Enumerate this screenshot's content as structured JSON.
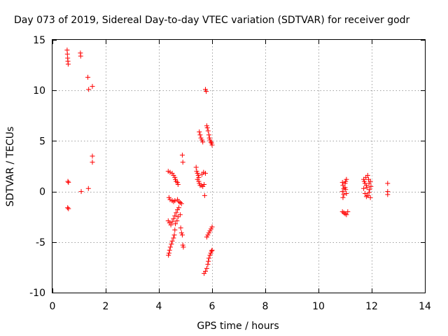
{
  "chart_data": {
    "type": "scatter",
    "title": "Day 073 of 2019, Sidereal Day-to-day VTEC variation (SDTVAR) for receiver godr",
    "xlabel": "GPS time / hours",
    "ylabel": "SDTVAR / TECUs",
    "xlim": [
      0,
      14
    ],
    "ylim": [
      -10,
      15
    ],
    "xticks": [
      0,
      2,
      4,
      6,
      8,
      10,
      12,
      14
    ],
    "yticks": [
      -10,
      -5,
      0,
      5,
      10,
      15
    ],
    "grid": true,
    "marker": "+",
    "color": "#ff0000",
    "series": [
      {
        "name": "SDTVAR",
        "points": [
          [
            0.55,
            14.0
          ],
          [
            0.56,
            13.6
          ],
          [
            0.57,
            13.2
          ],
          [
            0.58,
            12.9
          ],
          [
            0.59,
            12.6
          ],
          [
            0.58,
            1.0
          ],
          [
            0.6,
            0.9
          ],
          [
            0.57,
            -1.6
          ],
          [
            0.6,
            -1.7
          ],
          [
            1.05,
            13.7
          ],
          [
            1.06,
            13.4
          ],
          [
            1.08,
            0.0
          ],
          [
            1.33,
            11.3
          ],
          [
            1.36,
            10.1
          ],
          [
            1.5,
            10.4
          ],
          [
            1.5,
            3.5
          ],
          [
            1.5,
            2.9
          ],
          [
            1.35,
            0.3
          ],
          [
            4.35,
            2.0
          ],
          [
            4.42,
            1.9
          ],
          [
            4.5,
            1.8
          ],
          [
            4.55,
            1.6
          ],
          [
            4.6,
            1.4
          ],
          [
            4.62,
            1.2
          ],
          [
            4.65,
            1.0
          ],
          [
            4.7,
            0.9
          ],
          [
            4.72,
            0.7
          ],
          [
            4.38,
            -0.6
          ],
          [
            4.42,
            -0.8
          ],
          [
            4.5,
            -0.9
          ],
          [
            4.55,
            -1.0
          ],
          [
            4.6,
            -0.9
          ],
          [
            4.7,
            -0.8
          ],
          [
            4.75,
            -1.0
          ],
          [
            4.8,
            -1.1
          ],
          [
            4.85,
            -1.2
          ],
          [
            4.35,
            -2.9
          ],
          [
            4.4,
            -3.1
          ],
          [
            4.45,
            -3.3
          ],
          [
            4.5,
            -3.0
          ],
          [
            4.55,
            -2.7
          ],
          [
            4.6,
            -2.4
          ],
          [
            4.65,
            -2.1
          ],
          [
            4.7,
            -1.8
          ],
          [
            4.75,
            -1.6
          ],
          [
            4.62,
            -3.2
          ],
          [
            4.68,
            -2.9
          ],
          [
            4.72,
            -2.5
          ],
          [
            4.6,
            -3.8
          ],
          [
            4.58,
            -4.3
          ],
          [
            4.55,
            -4.6
          ],
          [
            4.5,
            -4.9
          ],
          [
            4.47,
            -5.2
          ],
          [
            4.43,
            -5.5
          ],
          [
            4.4,
            -5.8
          ],
          [
            4.38,
            -6.1
          ],
          [
            4.36,
            -6.3
          ],
          [
            4.8,
            -2.3
          ],
          [
            4.82,
            -3.6
          ],
          [
            4.85,
            -4.1
          ],
          [
            4.88,
            -4.3
          ],
          [
            4.9,
            -5.3
          ],
          [
            4.92,
            -5.5
          ],
          [
            4.88,
            3.6
          ],
          [
            4.9,
            2.9
          ],
          [
            5.4,
            2.4
          ],
          [
            5.42,
            2.0
          ],
          [
            5.45,
            1.8
          ],
          [
            5.48,
            1.6
          ],
          [
            5.5,
            1.4
          ],
          [
            5.45,
            1.2
          ],
          [
            5.5,
            1.0
          ],
          [
            5.52,
            0.8
          ],
          [
            5.55,
            0.6
          ],
          [
            5.6,
            0.6
          ],
          [
            5.65,
            0.5
          ],
          [
            5.7,
            0.7
          ],
          [
            5.62,
            1.7
          ],
          [
            5.68,
            1.9
          ],
          [
            5.75,
            1.8
          ],
          [
            5.72,
            -0.4
          ],
          [
            5.52,
            5.9
          ],
          [
            5.55,
            5.6
          ],
          [
            5.58,
            5.3
          ],
          [
            5.62,
            5.1
          ],
          [
            5.65,
            4.9
          ],
          [
            5.75,
            10.1
          ],
          [
            5.78,
            9.9
          ],
          [
            5.8,
            6.5
          ],
          [
            5.82,
            6.3
          ],
          [
            5.85,
            6.0
          ],
          [
            5.88,
            5.6
          ],
          [
            5.9,
            5.3
          ],
          [
            5.92,
            5.1
          ],
          [
            5.95,
            4.9
          ],
          [
            5.98,
            4.8
          ],
          [
            6.0,
            4.6
          ],
          [
            5.8,
            -4.5
          ],
          [
            5.84,
            -4.3
          ],
          [
            5.88,
            -4.1
          ],
          [
            5.92,
            -3.9
          ],
          [
            5.96,
            -3.7
          ],
          [
            6.0,
            -3.5
          ],
          [
            5.7,
            -8.1
          ],
          [
            5.75,
            -7.9
          ],
          [
            5.8,
            -7.6
          ],
          [
            5.84,
            -7.2
          ],
          [
            5.86,
            -6.9
          ],
          [
            5.88,
            -6.6
          ],
          [
            5.92,
            -6.3
          ],
          [
            5.95,
            -6.1
          ],
          [
            5.98,
            -5.9
          ],
          [
            6.0,
            -5.8
          ],
          [
            10.9,
            0.9
          ],
          [
            10.92,
            0.6
          ],
          [
            10.95,
            0.3
          ],
          [
            10.9,
            0.0
          ],
          [
            10.95,
            -0.3
          ],
          [
            10.92,
            -0.6
          ],
          [
            11.0,
            0.8
          ],
          [
            11.02,
            1.0
          ],
          [
            11.05,
            1.2
          ],
          [
            11.0,
            0.4
          ],
          [
            11.05,
            -0.2
          ],
          [
            11.02,
            0.2
          ],
          [
            10.9,
            -2.0
          ],
          [
            10.95,
            -2.1
          ],
          [
            11.0,
            -2.2
          ],
          [
            11.05,
            -2.3
          ],
          [
            11.1,
            -2.0
          ],
          [
            11.7,
            1.2
          ],
          [
            11.72,
            1.0
          ],
          [
            11.75,
            0.8
          ],
          [
            11.78,
            1.4
          ],
          [
            11.8,
            0.6
          ],
          [
            11.82,
            0.4
          ],
          [
            11.85,
            1.6
          ],
          [
            11.88,
            1.2
          ],
          [
            11.9,
            0.8
          ],
          [
            11.92,
            0.2
          ],
          [
            11.95,
            1.0
          ],
          [
            11.97,
            0.5
          ],
          [
            11.75,
            -0.2
          ],
          [
            11.8,
            -0.5
          ],
          [
            11.85,
            -0.4
          ],
          [
            11.9,
            -0.1
          ],
          [
            11.95,
            -0.6
          ],
          [
            11.7,
            0.3
          ],
          [
            12.6,
            0.8
          ],
          [
            12.6,
            0.0
          ],
          [
            12.6,
            -0.3
          ]
        ]
      }
    ]
  }
}
